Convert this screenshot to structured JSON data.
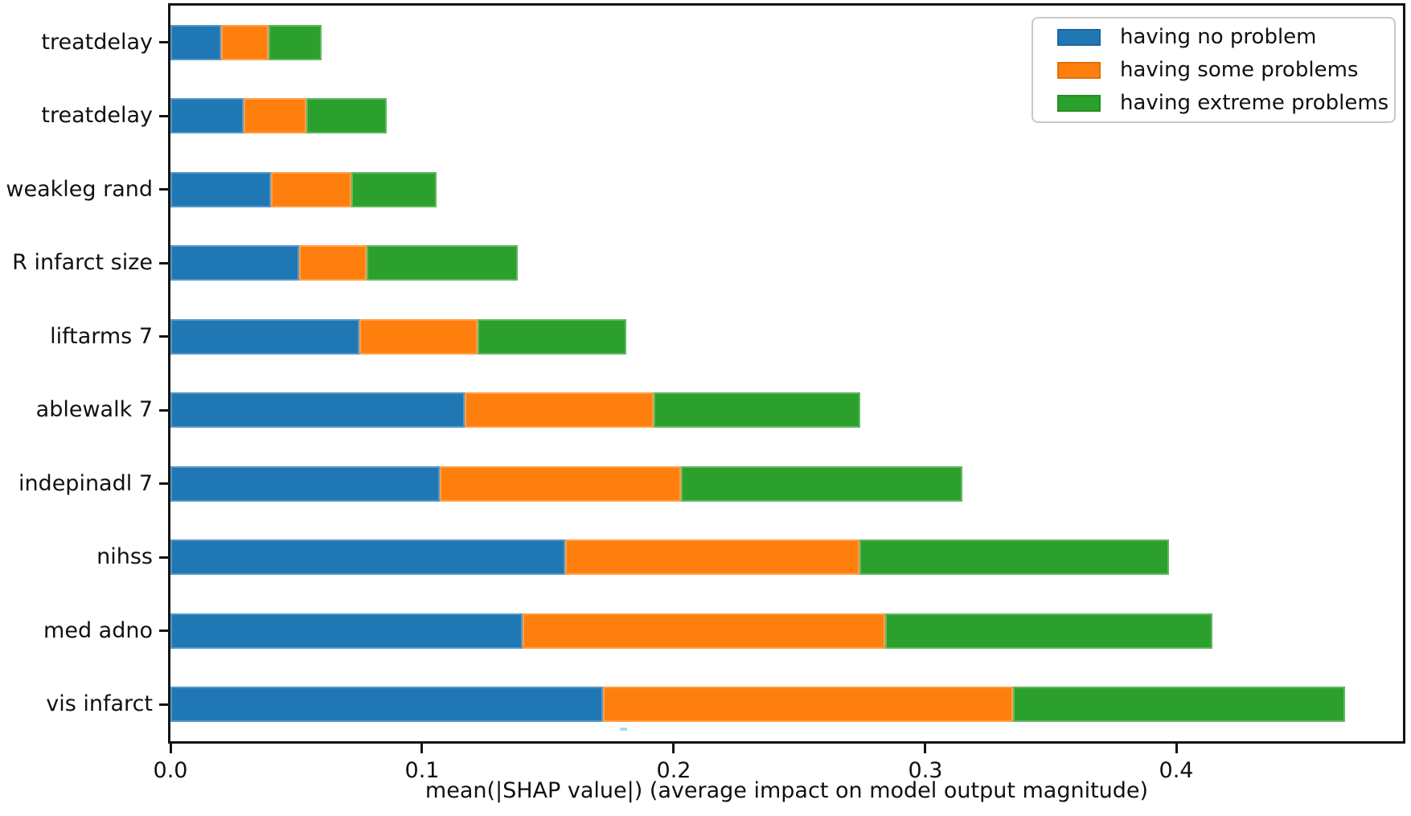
{
  "chart_data": {
    "type": "bar",
    "orientation": "horizontal",
    "stacked": true,
    "title": "",
    "xlabel": "mean(|SHAP value|) (average impact on model output magnitude)",
    "ylabel": "",
    "xlim": [
      0,
      0.49
    ],
    "xticks": [
      0.0,
      0.1,
      0.2,
      0.3,
      0.4
    ],
    "xtick_labels": [
      "0.0",
      "0.1",
      "0.2",
      "0.3",
      "0.4"
    ],
    "grid": false,
    "legend_position": "upper right",
    "categories_top_to_bottom": [
      "treatdelay",
      "treatdelay",
      "weakleg rand",
      "R infarct size",
      "liftarms 7",
      "ablewalk 7",
      "indepinadl 7",
      "nihss",
      "med adno",
      "vis infarct"
    ],
    "series": [
      {
        "name": "having no problem",
        "color": "#1f77b4",
        "values": [
          0.02,
          0.029,
          0.04,
          0.051,
          0.075,
          0.117,
          0.107,
          0.157,
          0.14,
          0.172
        ]
      },
      {
        "name": "having some problems",
        "color": "#ff7f0e",
        "values": [
          0.019,
          0.025,
          0.032,
          0.027,
          0.047,
          0.075,
          0.096,
          0.117,
          0.144,
          0.163
        ]
      },
      {
        "name": "having extreme problems",
        "color": "#2ca02c",
        "values": [
          0.021,
          0.032,
          0.034,
          0.06,
          0.059,
          0.082,
          0.112,
          0.123,
          0.13,
          0.132
        ]
      }
    ],
    "totals_top_to_bottom": [
      0.06,
      0.086,
      0.106,
      0.138,
      0.181,
      0.274,
      0.315,
      0.397,
      0.414,
      0.467
    ]
  },
  "colors": {
    "axis": "#141414",
    "text": "#111111",
    "background": "#ffffff",
    "legend_border": "#c9c9c9"
  }
}
